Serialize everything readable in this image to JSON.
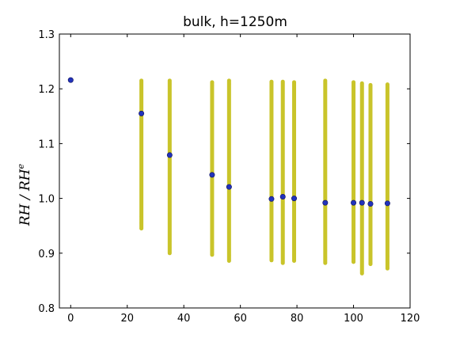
{
  "chart_data": {
    "type": "scatter",
    "title": "bulk, h=1250m",
    "xlabel": "",
    "ylabel": "RH / RH",
    "ylabel_superscript": "e",
    "xlim": [
      -4,
      120
    ],
    "ylim": [
      0.8,
      1.3
    ],
    "xticks": [
      "0",
      "20",
      "40",
      "60",
      "80",
      "100",
      "120"
    ],
    "yticks": [
      "0.8",
      "0.9",
      "1.0",
      "1.1",
      "1.2",
      "1.3"
    ],
    "grid": false,
    "legend": "none",
    "series": [
      {
        "marker": "small-dot-columns",
        "color": "#c9c42a",
        "columns": [
          {
            "x": 25,
            "ymin": 0.945,
            "ymax": 1.215
          },
          {
            "x": 35,
            "ymin": 0.9,
            "ymax": 1.215
          },
          {
            "x": 50,
            "ymin": 0.897,
            "ymax": 1.212
          },
          {
            "x": 56,
            "ymin": 0.886,
            "ymax": 1.215
          },
          {
            "x": 71,
            "ymin": 0.887,
            "ymax": 1.213
          },
          {
            "x": 75,
            "ymin": 0.882,
            "ymax": 1.213
          },
          {
            "x": 79,
            "ymin": 0.886,
            "ymax": 1.212
          },
          {
            "x": 90,
            "ymin": 0.882,
            "ymax": 1.215
          },
          {
            "x": 100,
            "ymin": 0.884,
            "ymax": 1.212
          },
          {
            "x": 103,
            "ymin": 0.863,
            "ymax": 1.21
          },
          {
            "x": 106,
            "ymin": 0.88,
            "ymax": 1.207
          },
          {
            "x": 112,
            "ymin": 0.872,
            "ymax": 1.208
          }
        ]
      },
      {
        "marker": "large-dot",
        "color": "#2233bb",
        "points": [
          {
            "x": 0,
            "y": 1.216
          },
          {
            "x": 25,
            "y": 1.155
          },
          {
            "x": 35,
            "y": 1.079
          },
          {
            "x": 50,
            "y": 1.043
          },
          {
            "x": 56,
            "y": 1.021
          },
          {
            "x": 71,
            "y": 0.999
          },
          {
            "x": 75,
            "y": 1.003
          },
          {
            "x": 79,
            "y": 1.0
          },
          {
            "x": 90,
            "y": 0.992
          },
          {
            "x": 100,
            "y": 0.992
          },
          {
            "x": 103,
            "y": 0.992
          },
          {
            "x": 106,
            "y": 0.99
          },
          {
            "x": 112,
            "y": 0.991
          }
        ]
      }
    ]
  }
}
